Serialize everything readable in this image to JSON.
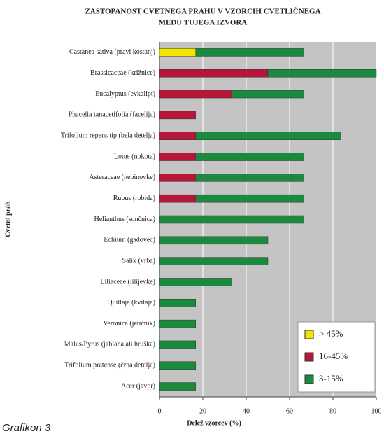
{
  "chart_data": {
    "type": "stacked_bar_horizontal",
    "title": [
      "ZASTOPANOST CVETNEGA PRAHU V VZORCIH CVETLIČNEGA",
      "MEDU TUJEGA IZVORA"
    ],
    "x_label": "Delež vzorcev (%)",
    "y_label": "Cvetni prah",
    "caption": "Grafikon 3",
    "categories": [
      "Castanea sativa (pravi kostanj)",
      "Brassicaceae (križnice)",
      "Eucalyptus (evkalipt)",
      "Phacelia tanacetifolia (facelija)",
      "Trifolium repens tip (bela detelja)",
      "Lotus (nokota)",
      "Asteraceae (nebinovke)",
      "Rubus (robida)",
      "Helianthus (sončnica)",
      "Echium (gadovec)",
      "Salix (vrba)",
      "Liliaceae (lilijevke)",
      "Quillaja (kvilaja)",
      "Veronica (jetičnik)",
      "Malus/Pyrus (jablana ali hruška)",
      "Trifolium pratense (črna detelja)",
      "Acer (javor)"
    ],
    "series": [
      {
        "name": "> 45%",
        "color": "#f2e600",
        "values": [
          16.7,
          0,
          0,
          0,
          0,
          0,
          0,
          0,
          0,
          0,
          0,
          0,
          0,
          0,
          0,
          0,
          0
        ]
      },
      {
        "name": "16-45%",
        "color": "#b5163a",
        "values": [
          0,
          50,
          33.3,
          16.7,
          16.7,
          16.7,
          16.7,
          16.7,
          0,
          0,
          0,
          0,
          0,
          0,
          0,
          0,
          0
        ]
      },
      {
        "name": "3-15%",
        "color": "#1a8a3e",
        "values": [
          50,
          50,
          33.3,
          0,
          66.7,
          50,
          50,
          50,
          66.7,
          50,
          50,
          33.3,
          16.7,
          16.7,
          16.7,
          16.7,
          16.7
        ]
      }
    ],
    "xlim": [
      0,
      100
    ],
    "xticks": [
      0,
      20,
      40,
      60,
      80,
      100
    ],
    "grid": true,
    "legend": "lower right"
  }
}
